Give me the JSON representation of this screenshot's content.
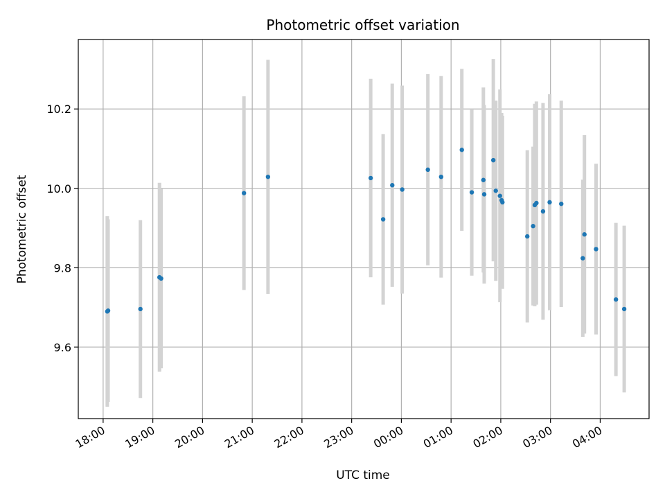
{
  "chart_data": {
    "type": "scatter",
    "title": "Photometric offset variation",
    "xlabel": "UTC time",
    "ylabel": "Photometric offset",
    "x_unit": "UTC time (hours)",
    "xlim": [
      "17:30",
      "04:59"
    ],
    "ylim": [
      9.42,
      10.375
    ],
    "xticks": [
      "18:00",
      "19:00",
      "20:00",
      "21:00",
      "22:00",
      "23:00",
      "00:00",
      "01:00",
      "02:00",
      "03:00",
      "04:00"
    ],
    "yticks": [
      "9.6",
      "9.8",
      "10.0",
      "10.2"
    ],
    "grid": true,
    "series": [
      {
        "points": [
          {
            "t": "18:05",
            "y": 9.69,
            "err": 0.24
          },
          {
            "t": "18:06",
            "y": 9.692,
            "err": 0.23
          },
          {
            "t": "18:45",
            "y": 9.696,
            "err": 0.224
          },
          {
            "t": "19:08",
            "y": 9.776,
            "err": 0.238
          },
          {
            "t": "19:10",
            "y": 9.773,
            "err": 0.226
          },
          {
            "t": "20:50",
            "y": 9.988,
            "err": 0.244
          },
          {
            "t": "21:19",
            "y": 10.029,
            "err": 0.295
          },
          {
            "t": "23:23",
            "y": 10.026,
            "err": 0.25
          },
          {
            "t": "23:38",
            "y": 9.922,
            "err": 0.215
          },
          {
            "t": "23:49",
            "y": 10.008,
            "err": 0.256
          },
          {
            "t": "00:01",
            "y": 9.997,
            "err": 0.262
          },
          {
            "t": "00:32",
            "y": 10.047,
            "err": 0.241
          },
          {
            "t": "00:48",
            "y": 10.029,
            "err": 0.254
          },
          {
            "t": "01:13",
            "y": 10.097,
            "err": 0.204
          },
          {
            "t": "01:25",
            "y": 9.99,
            "err": 0.21
          },
          {
            "t": "01:39",
            "y": 10.021,
            "err": 0.233
          },
          {
            "t": "01:40",
            "y": 9.985,
            "err": 0.225
          },
          {
            "t": "01:51",
            "y": 10.071,
            "err": 0.255
          },
          {
            "t": "01:54",
            "y": 9.994,
            "err": 0.227
          },
          {
            "t": "01:59",
            "y": 9.981,
            "err": 0.268
          },
          {
            "t": "02:01",
            "y": 9.97,
            "err": 0.22
          },
          {
            "t": "02:02",
            "y": 9.965,
            "err": 0.218
          },
          {
            "t": "02:32",
            "y": 9.879,
            "err": 0.217
          },
          {
            "t": "02:39",
            "y": 9.905,
            "err": 0.2
          },
          {
            "t": "02:41",
            "y": 9.958,
            "err": 0.255
          },
          {
            "t": "02:43",
            "y": 9.963,
            "err": 0.256
          },
          {
            "t": "02:51",
            "y": 9.942,
            "err": 0.273
          },
          {
            "t": "02:59",
            "y": 9.965,
            "err": 0.272
          },
          {
            "t": "03:13",
            "y": 9.961,
            "err": 0.26
          },
          {
            "t": "03:39",
            "y": 9.824,
            "err": 0.198
          },
          {
            "t": "03:41",
            "y": 9.884,
            "err": 0.25
          },
          {
            "t": "03:55",
            "y": 9.847,
            "err": 0.215
          },
          {
            "t": "04:19",
            "y": 9.72,
            "err": 0.193
          },
          {
            "t": "04:29",
            "y": 9.696,
            "err": 0.21
          }
        ],
        "color": "#1f77b4",
        "errorbar_color": "#d3d3d3"
      }
    ]
  }
}
